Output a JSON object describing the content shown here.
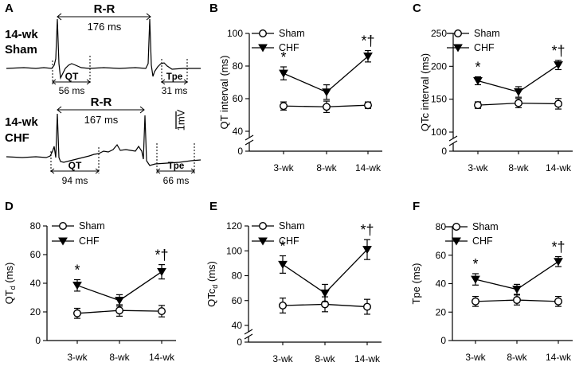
{
  "ecg": {
    "panel_label": "A",
    "sham": {
      "group": [
        "14-wk",
        "Sham"
      ],
      "rr_label": "R-R",
      "rr_value": "176 ms",
      "qt_label": "QT",
      "qt_value": "56 ms",
      "tpe_label": "Tpe",
      "tpe_value": "31 ms"
    },
    "chf": {
      "group": [
        "14-wk",
        "CHF"
      ],
      "rr_label": "R-R",
      "rr_value": "167 ms",
      "qt_label": "QT",
      "qt_value": "94 ms",
      "tpe_label": "Tpe",
      "tpe_value": "66 ms"
    },
    "scale_label": "1mV"
  },
  "colors": {
    "line": "#000000",
    "open_marker_fill": "#ffffff"
  },
  "chart_data": [
    {
      "panel": "B",
      "type": "line",
      "ylabel": "QT interval (ms)",
      "ylabel_sub": "",
      "ylim": [
        40,
        100
      ],
      "yticks": [
        40,
        60,
        80,
        100
      ],
      "zero_tick": "0",
      "categories": [
        "3-wk",
        "8-wk",
        "14-wk"
      ],
      "legend": [
        "Sham",
        "CHF"
      ],
      "series": [
        {
          "name": "Sham",
          "marker": "open-circle",
          "values": [
            55.5,
            55,
            56
          ],
          "errors": [
            2.5,
            3.5,
            2
          ]
        },
        {
          "name": "CHF",
          "marker": "filled-triangle-down",
          "values": [
            75.5,
            64,
            86
          ],
          "errors": [
            4,
            4.5,
            3.5
          ]
        }
      ],
      "annotations": [
        {
          "category": "3-wk",
          "text": "*"
        },
        {
          "category": "14-wk",
          "text": "*†"
        }
      ]
    },
    {
      "panel": "C",
      "type": "line",
      "ylabel": "QTc interval (ms)",
      "ylabel_sub": "",
      "ylim": [
        100,
        250
      ],
      "yticks": [
        100,
        150,
        200,
        250
      ],
      "zero_tick": "0",
      "categories": [
        "3-wk",
        "8-wk",
        "14-wk"
      ],
      "legend": [
        "Sham",
        "CHF"
      ],
      "series": [
        {
          "name": "Sham",
          "marker": "open-circle",
          "values": [
            141,
            144,
            143
          ],
          "errors": [
            5,
            7,
            8
          ]
        },
        {
          "name": "CHF",
          "marker": "filled-triangle-down",
          "values": [
            178,
            161,
            202
          ],
          "errors": [
            6,
            8,
            7
          ]
        }
      ],
      "annotations": [
        {
          "category": "3-wk",
          "text": "*"
        },
        {
          "category": "14-wk",
          "text": "*†"
        }
      ]
    },
    {
      "panel": "D",
      "type": "line",
      "ylabel": "QT",
      "ylabel_sub": "d",
      "ylabel_suffix": " (ms)",
      "ylim": [
        0,
        80
      ],
      "yticks": [
        0,
        20,
        40,
        60,
        80
      ],
      "zero_tick": "",
      "categories": [
        "3-wk",
        "8-wk",
        "14-wk"
      ],
      "legend": [
        "Sham",
        "CHF"
      ],
      "series": [
        {
          "name": "Sham",
          "marker": "open-circle",
          "values": [
            19,
            21,
            20.5
          ],
          "errors": [
            3.5,
            4,
            4
          ]
        },
        {
          "name": "CHF",
          "marker": "filled-triangle-down",
          "values": [
            38.5,
            28,
            48
          ],
          "errors": [
            4,
            4,
            5
          ]
        }
      ],
      "annotations": [
        {
          "category": "3-wk",
          "text": "*"
        },
        {
          "category": "14-wk",
          "text": "*†"
        }
      ]
    },
    {
      "panel": "E",
      "type": "line",
      "ylabel": "QTc",
      "ylabel_sub": "d",
      "ylabel_suffix": " (ms)",
      "ylim": [
        40,
        120
      ],
      "yticks": [
        40,
        60,
        80,
        100,
        120
      ],
      "zero_tick": "0",
      "categories": [
        "3-wk",
        "8-wk",
        "14-wk"
      ],
      "legend": [
        "Sham",
        "CHF"
      ],
      "series": [
        {
          "name": "Sham",
          "marker": "open-circle",
          "values": [
            56,
            57,
            55
          ],
          "errors": [
            6,
            6,
            6
          ]
        },
        {
          "name": "CHF",
          "marker": "filled-triangle-down",
          "values": [
            89,
            66,
            101
          ],
          "errors": [
            7,
            7,
            8
          ]
        }
      ],
      "annotations": [
        {
          "category": "3-wk",
          "text": "*"
        },
        {
          "category": "14-wk",
          "text": "*†"
        }
      ]
    },
    {
      "panel": "F",
      "type": "line",
      "ylabel": "Tpe (ms)",
      "ylabel_sub": "",
      "ylim": [
        0,
        80
      ],
      "yticks": [
        0,
        20,
        40,
        60,
        80
      ],
      "zero_tick": "",
      "categories": [
        "3-wk",
        "8-wk",
        "14-wk"
      ],
      "legend": [
        "Sham",
        "CHF"
      ],
      "series": [
        {
          "name": "Sham",
          "marker": "open-circle",
          "values": [
            27.5,
            28.5,
            27.5
          ],
          "errors": [
            3.5,
            3.5,
            3.5
          ]
        },
        {
          "name": "CHF",
          "marker": "filled-triangle-down",
          "values": [
            43,
            36,
            55.5
          ],
          "errors": [
            4,
            3.5,
            3.5
          ]
        }
      ],
      "annotations": [
        {
          "category": "3-wk",
          "text": "*"
        },
        {
          "category": "14-wk",
          "text": "*†"
        }
      ]
    }
  ]
}
